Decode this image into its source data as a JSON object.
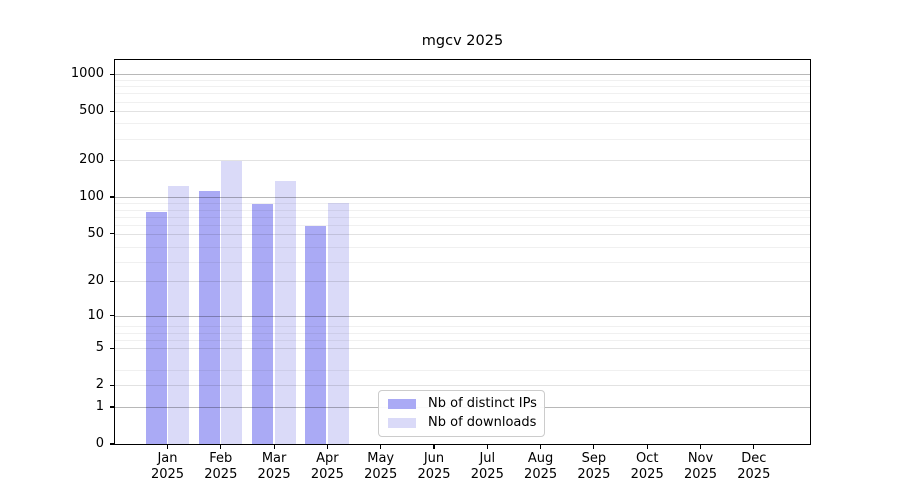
{
  "chart_data": {
    "type": "bar",
    "title": "mgcv 2025",
    "x_axis": {
      "months": [
        "Jan",
        "Feb",
        "Mar",
        "Apr",
        "May",
        "Jun",
        "Jul",
        "Aug",
        "Sep",
        "Oct",
        "Nov",
        "Dec"
      ],
      "year": "2025"
    },
    "y_axis": {
      "scale": "log1p",
      "ticks": [
        0,
        1,
        2,
        5,
        10,
        20,
        50,
        100,
        200,
        500,
        1000
      ],
      "ylim": [
        0,
        1320
      ],
      "grid": "on"
    },
    "series": [
      {
        "name": "Nb of distinct IPs",
        "color": "#aaaaf5",
        "values": [
          75,
          112,
          88,
          58,
          null,
          null,
          null,
          null,
          null,
          null,
          null,
          null
        ]
      },
      {
        "name": "Nb of downloads",
        "color": "#dadaf8",
        "values": [
          123,
          196,
          135,
          89,
          null,
          null,
          null,
          null,
          null,
          null,
          null,
          null
        ]
      }
    ],
    "legend": {
      "position": "inside-bottom-center"
    }
  }
}
